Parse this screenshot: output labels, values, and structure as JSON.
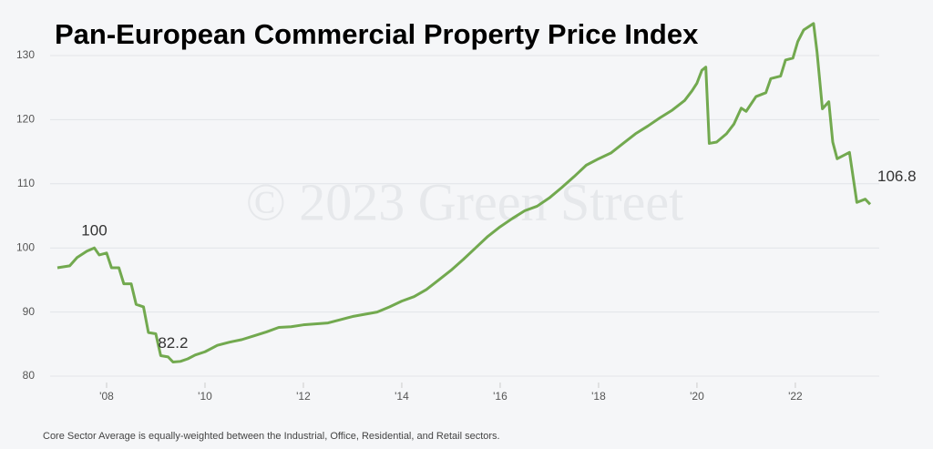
{
  "chart_data": {
    "type": "line",
    "title": "Pan-European Commercial Property Price Index",
    "watermark": "© 2023 Green Street",
    "footnote": "Core Sector Average is equally-weighted between the Industrial, Office, Residential, and Retail sectors.",
    "x": [
      2007.0,
      2007.25,
      2007.4,
      2007.6,
      2007.75,
      2007.85,
      2008.0,
      2008.1,
      2008.25,
      2008.35,
      2008.5,
      2008.6,
      2008.75,
      2008.85,
      2009.0,
      2009.1,
      2009.25,
      2009.35,
      2009.5,
      2009.65,
      2009.8,
      2010.0,
      2010.25,
      2010.5,
      2010.75,
      2011.0,
      2011.25,
      2011.5,
      2011.75,
      2012.0,
      2012.5,
      2012.75,
      2013.0,
      2013.5,
      2013.75,
      2014.0,
      2014.25,
      2014.5,
      2014.75,
      2015.0,
      2015.25,
      2015.5,
      2015.75,
      2016.0,
      2016.25,
      2016.5,
      2016.75,
      2017.0,
      2017.25,
      2017.5,
      2017.75,
      2018.0,
      2018.25,
      2018.5,
      2018.75,
      2019.0,
      2019.25,
      2019.5,
      2019.75,
      2019.9,
      2020.0,
      2020.1,
      2020.18,
      2020.25,
      2020.4,
      2020.6,
      2020.75,
      2020.9,
      2021.0,
      2021.2,
      2021.4,
      2021.5,
      2021.7,
      2021.8,
      2021.95,
      2022.05,
      2022.17,
      2022.37,
      2022.44,
      2022.55,
      2022.68,
      2022.76,
      2022.85,
      2023.1,
      2023.25,
      2023.42,
      2023.52
    ],
    "series": [
      {
        "name": "Core Sector Average",
        "color": "#72a94f",
        "values": [
          96.9,
          97.2,
          98.5,
          99.5,
          100,
          98.9,
          99.2,
          96.9,
          96.9,
          94.4,
          94.4,
          91.2,
          90.8,
          86.8,
          86.6,
          83.2,
          83.0,
          82.2,
          82.3,
          82.7,
          83.3,
          83.8,
          84.8,
          85.3,
          85.7,
          86.3,
          86.9,
          87.6,
          87.7,
          88.0,
          88.3,
          88.8,
          89.3,
          90.0,
          90.8,
          91.7,
          92.4,
          93.5,
          95.0,
          96.5,
          98.2,
          100.0,
          101.8,
          103.3,
          104.6,
          105.8,
          106.5,
          107.8,
          109.4,
          111.1,
          112.9,
          113.9,
          114.8,
          116.3,
          117.8,
          119.0,
          120.3,
          121.5,
          123.0,
          124.5,
          125.7,
          127.7,
          128.2,
          116.3,
          116.5,
          117.8,
          119.3,
          121.8,
          121.3,
          123.6,
          124.2,
          126.4,
          126.8,
          129.3,
          129.6,
          132.2,
          134.0,
          135.0,
          130.6,
          121.7,
          122.8,
          116.5,
          113.9,
          114.9,
          107.1,
          107.6,
          106.8
        ]
      }
    ],
    "annotations": [
      {
        "text": "100",
        "x": 2007.75,
        "y": 100
      },
      {
        "text": "82.2",
        "x": 2009.35,
        "y": 82.2
      },
      {
        "text": "106.8",
        "x": 2023.52,
        "y": 106.8
      }
    ],
    "xlim": [
      2007.0,
      2023.52
    ],
    "xticks": [
      {
        "value": 2008,
        "label": "'08"
      },
      {
        "value": 2010,
        "label": "'10"
      },
      {
        "value": 2012,
        "label": "'12"
      },
      {
        "value": 2014,
        "label": "'14"
      },
      {
        "value": 2016,
        "label": "'16"
      },
      {
        "value": 2018,
        "label": "'18"
      },
      {
        "value": 2020,
        "label": "'20"
      },
      {
        "value": 2022,
        "label": "'22"
      }
    ],
    "ylim": [
      80,
      130
    ],
    "yticks": [
      80,
      90,
      100,
      110,
      120,
      130
    ],
    "grid": true
  }
}
